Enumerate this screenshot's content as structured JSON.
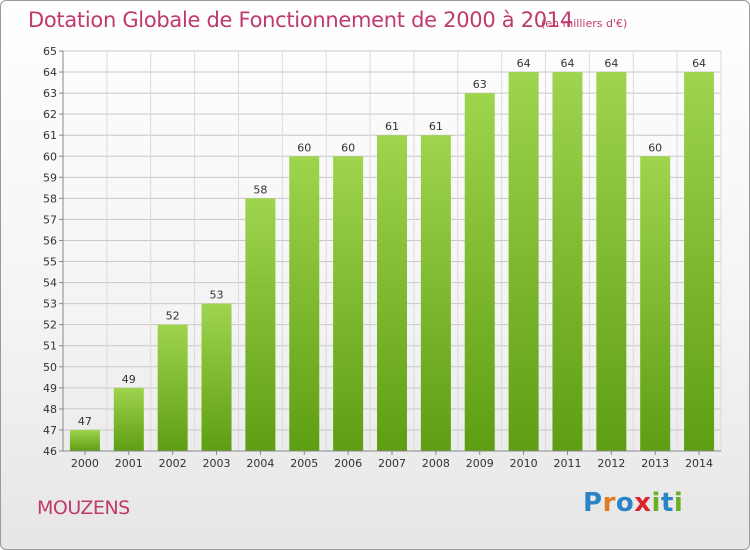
{
  "header": {
    "title": "Dotation Globale de Fonctionnement de 2000 à 2014",
    "subtitle": "(en milliers d'€)"
  },
  "footer": {
    "commune": "MOUZENS",
    "logo": [
      "P",
      "r",
      "o",
      "x",
      "i",
      "t",
      "i"
    ]
  },
  "colors": {
    "accent": "#c0396d",
    "bar_top": "#9fd44e",
    "bar_bottom": "#5e9e12",
    "logo": [
      "#2b84c8",
      "#e07b22",
      "#2b84c8",
      "#d8262d",
      "#6ab023",
      "#2b84c8",
      "#6ab023"
    ]
  },
  "chart_data": {
    "type": "bar",
    "categories": [
      "2000",
      "2001",
      "2002",
      "2003",
      "2004",
      "2005",
      "2006",
      "2007",
      "2008",
      "2009",
      "2010",
      "2011",
      "2012",
      "2013",
      "2014"
    ],
    "values": [
      47,
      49,
      52,
      53,
      58,
      60,
      60,
      61,
      61,
      63,
      64,
      64,
      64,
      60,
      64
    ],
    "ylim": [
      46,
      65
    ],
    "yticks": [
      "46",
      "47",
      "48",
      "49",
      "50",
      "51",
      "52",
      "53",
      "54",
      "55",
      "56",
      "57",
      "58",
      "59",
      "60",
      "61",
      "62",
      "63",
      "64",
      "65"
    ],
    "grid": true,
    "legend": "none"
  }
}
